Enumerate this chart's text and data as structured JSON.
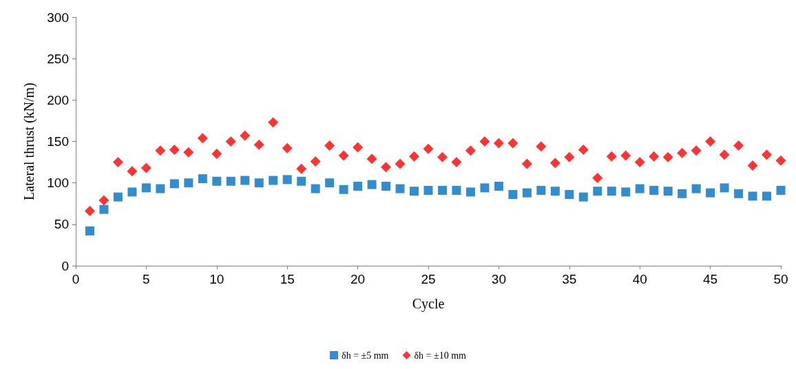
{
  "chart_data": {
    "type": "scatter",
    "xlabel": "Cycle",
    "ylabel": "Lateral thrust (kN/m)",
    "xlim": [
      0,
      50
    ],
    "xticks": [
      0,
      5,
      10,
      15,
      20,
      25,
      30,
      35,
      40,
      45,
      50
    ],
    "ylim": [
      0,
      300
    ],
    "yticks": [
      0,
      50,
      100,
      150,
      200,
      250,
      300
    ],
    "x": [
      1,
      2,
      3,
      4,
      5,
      6,
      7,
      8,
      9,
      10,
      11,
      12,
      13,
      14,
      15,
      16,
      17,
      18,
      19,
      20,
      21,
      22,
      23,
      24,
      25,
      26,
      27,
      28,
      29,
      30,
      31,
      32,
      33,
      34,
      35,
      36,
      37,
      38,
      39,
      40,
      41,
      42,
      43,
      44,
      45,
      46,
      47,
      48,
      49,
      50
    ],
    "series": [
      {
        "name": "δh = ±5 mm",
        "color": "#0070c0",
        "marker": "square",
        "values": [
          42,
          68,
          83,
          89,
          94,
          93,
          99,
          100,
          105,
          102,
          102,
          103,
          100,
          103,
          104,
          102,
          93,
          100,
          92,
          96,
          98,
          96,
          93,
          90,
          91,
          91,
          91,
          89,
          94,
          96,
          86,
          88,
          91,
          90,
          86,
          83,
          90,
          90,
          89,
          93,
          91,
          90,
          87,
          93,
          88,
          94,
          87,
          84,
          84,
          91
        ]
      },
      {
        "name": "δh = ±10 mm",
        "color": "#ff0000",
        "marker": "diamond",
        "values": [
          66,
          79,
          125,
          114,
          118,
          139,
          140,
          137,
          154,
          135,
          150,
          157,
          146,
          173,
          142,
          117,
          126,
          145,
          133,
          143,
          129,
          119,
          123,
          132,
          141,
          131,
          125,
          139,
          150,
          148,
          148,
          123,
          144,
          124,
          131,
          140,
          106,
          132,
          133,
          125,
          132,
          131,
          136,
          139,
          150,
          134,
          145,
          121,
          134,
          127
        ]
      }
    ],
    "grid": false,
    "legend": "bottom"
  }
}
